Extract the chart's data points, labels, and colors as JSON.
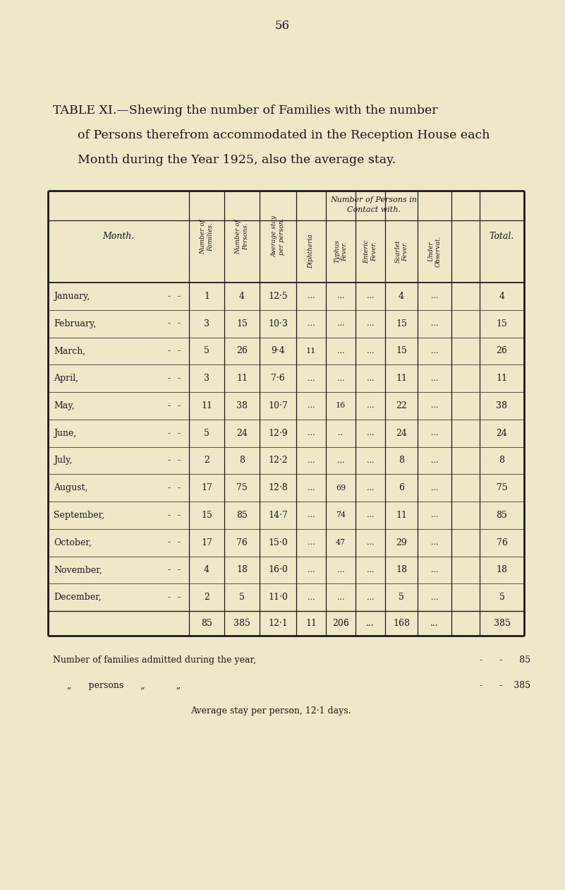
{
  "page_number": "56",
  "title_line1": "TABLE XI.—Shewing the number of Families with the number",
  "title_line2": "of Persons therefrom accommodated in the Reception House each",
  "title_line3": "Month during the Year 1925, also the average stay.",
  "bg_color": "#eee8c8",
  "text_color": "#1a1820",
  "months": [
    "January,",
    "February,",
    "March,",
    "April,",
    "May,",
    "June,",
    "July,",
    "August,",
    "September,",
    "October,",
    "November,",
    "December,"
  ],
  "num_families": [
    "1",
    "3",
    "5",
    "3",
    "11",
    "5",
    "2",
    "17",
    "15",
    "17",
    "4",
    "2"
  ],
  "num_persons": [
    "4",
    "15",
    "26",
    "11",
    "38",
    "24",
    "8",
    "75",
    "85",
    "76",
    "18",
    "5"
  ],
  "avg_stay": [
    "12·5",
    "10·3",
    "9·4",
    "7·6",
    "10·7",
    "12·9",
    "12·2",
    "12·8",
    "14·7",
    "15·0",
    "16·0",
    "11·0"
  ],
  "diphtheria": [
    "...",
    "...",
    "11",
    "...",
    "...",
    "...",
    "...",
    "...",
    "...",
    "...",
    "...",
    "..."
  ],
  "typhus": [
    "...",
    "...",
    "...",
    "...",
    "16",
    "..",
    "...",
    "69",
    "74",
    "47",
    "...",
    "..."
  ],
  "enteric": [
    "...",
    "...",
    "...",
    "...",
    "...",
    "...",
    "...",
    "...",
    "...",
    "...",
    "...",
    "..."
  ],
  "scarlet": [
    "4",
    "15",
    "15",
    "11",
    "22",
    "24",
    "8",
    "6",
    "11",
    "29",
    "18",
    "5"
  ],
  "under_obs": [
    "...",
    "...",
    "...",
    "...",
    "...",
    "...",
    "...",
    "...",
    "...",
    "...",
    "...",
    "..."
  ],
  "totals": [
    "4",
    "15",
    "26",
    "11",
    "38",
    "24",
    "8",
    "75",
    "85",
    "76",
    "18",
    "5"
  ],
  "totals_row_fam": "85",
  "totals_row_per": "385",
  "totals_row_avg": "12·1",
  "totals_row_diph": "11",
  "totals_row_typh": "206",
  "totals_row_ent": "...",
  "totals_row_scar": "168",
  "totals_row_und": "...",
  "totals_row_tot": "385",
  "footer1a": "Number of families admitted during the year,",
  "footer1b": "-      -      85",
  "footer2a": "„      persons      „           „",
  "footer2b": "-      -    385",
  "footer3": "Average stay per person, 12·1 days."
}
